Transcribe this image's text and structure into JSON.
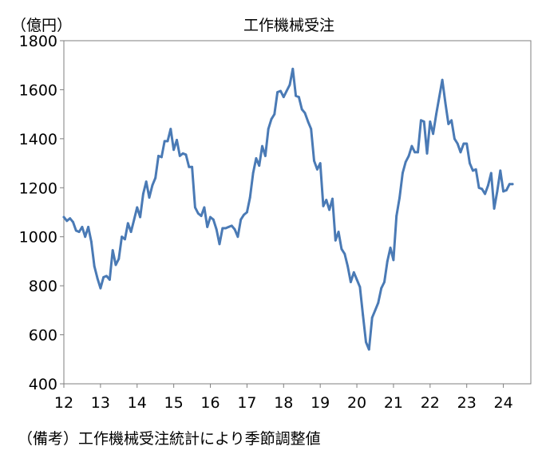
{
  "chart_data": {
    "type": "line",
    "title": "工作機械受注",
    "ylabel": "（億円）",
    "xlabel": "",
    "ylim": [
      400,
      1800
    ],
    "yticks": [
      400,
      600,
      800,
      1000,
      1200,
      1400,
      1600,
      1800
    ],
    "xlim": [
      2012.0,
      2024.75
    ],
    "xticks": [
      {
        "value": 2012.0,
        "label": "12"
      },
      {
        "value": 2013.0,
        "label": "13"
      },
      {
        "value": 2014.0,
        "label": "14"
      },
      {
        "value": 2015.0,
        "label": "15"
      },
      {
        "value": 2016.0,
        "label": "16"
      },
      {
        "value": 2017.0,
        "label": "17"
      },
      {
        "value": 2018.0,
        "label": "18"
      },
      {
        "value": 2019.0,
        "label": "19"
      },
      {
        "value": 2020.0,
        "label": "20"
      },
      {
        "value": 2021.0,
        "label": "21"
      },
      {
        "value": 2022.0,
        "label": "22"
      },
      {
        "value": 2023.0,
        "label": "23"
      },
      {
        "value": 2024.0,
        "label": "24"
      }
    ],
    "grid": false,
    "line_color": "#4a7ab5",
    "series": [
      {
        "x": [
          2012.0,
          2012.083,
          2012.167,
          2012.25,
          2012.333,
          2012.417,
          2012.5,
          2012.583,
          2012.667,
          2012.75,
          2012.833,
          2012.917,
          2013.0,
          2013.083,
          2013.167,
          2013.25,
          2013.333,
          2013.417,
          2013.5,
          2013.583,
          2013.667,
          2013.75,
          2013.833,
          2013.917,
          2014.0,
          2014.083,
          2014.167,
          2014.25,
          2014.333,
          2014.417,
          2014.5,
          2014.583,
          2014.667,
          2014.75,
          2014.833,
          2014.917,
          2015.0,
          2015.083,
          2015.167,
          2015.25,
          2015.333,
          2015.417,
          2015.5,
          2015.583,
          2015.667,
          2015.75,
          2015.833,
          2015.917,
          2016.0,
          2016.083,
          2016.167,
          2016.25,
          2016.333,
          2016.417,
          2016.5,
          2016.583,
          2016.667,
          2016.75,
          2016.833,
          2016.917,
          2017.0,
          2017.083,
          2017.167,
          2017.25,
          2017.333,
          2017.417,
          2017.5,
          2017.583,
          2017.667,
          2017.75,
          2017.833,
          2017.917,
          2018.0,
          2018.083,
          2018.167,
          2018.25,
          2018.333,
          2018.417,
          2018.5,
          2018.583,
          2018.667,
          2018.75,
          2018.833,
          2018.917,
          2019.0,
          2019.083,
          2019.167,
          2019.25,
          2019.333,
          2019.417,
          2019.5,
          2019.583,
          2019.667,
          2019.75,
          2019.833,
          2019.917,
          2020.0,
          2020.083,
          2020.167,
          2020.25,
          2020.333,
          2020.417,
          2020.5,
          2020.583,
          2020.667,
          2020.75,
          2020.833,
          2020.917,
          2021.0,
          2021.083,
          2021.167,
          2021.25,
          2021.333,
          2021.417,
          2021.5,
          2021.583,
          2021.667,
          2021.75,
          2021.833,
          2021.917,
          2022.0,
          2022.083,
          2022.167,
          2022.25,
          2022.333,
          2022.417,
          2022.5,
          2022.583,
          2022.667,
          2022.75,
          2022.833,
          2022.917,
          2023.0,
          2023.083,
          2023.167,
          2023.25,
          2023.333,
          2023.417,
          2023.5,
          2023.583,
          2023.667,
          2023.75,
          2023.833,
          2023.917,
          2024.0,
          2024.083,
          2024.167,
          2024.25
        ],
        "y": [
          1080,
          1065,
          1075,
          1060,
          1025,
          1020,
          1040,
          1000,
          1040,
          980,
          880,
          830,
          790,
          835,
          840,
          825,
          945,
          885,
          910,
          1000,
          990,
          1055,
          1020,
          1070,
          1120,
          1080,
          1175,
          1225,
          1160,
          1210,
          1240,
          1330,
          1325,
          1390,
          1390,
          1440,
          1355,
          1395,
          1330,
          1340,
          1335,
          1285,
          1285,
          1120,
          1095,
          1085,
          1120,
          1040,
          1080,
          1070,
          1030,
          970,
          1035,
          1035,
          1040,
          1045,
          1030,
          1000,
          1070,
          1090,
          1100,
          1160,
          1260,
          1320,
          1290,
          1370,
          1330,
          1440,
          1480,
          1500,
          1590,
          1595,
          1570,
          1595,
          1620,
          1685,
          1575,
          1570,
          1520,
          1505,
          1470,
          1440,
          1310,
          1275,
          1300,
          1125,
          1150,
          1110,
          1155,
          985,
          1020,
          950,
          930,
          880,
          815,
          855,
          825,
          795,
          680,
          570,
          540,
          670,
          700,
          730,
          790,
          815,
          900,
          955,
          905,
          1085,
          1160,
          1260,
          1305,
          1330,
          1370,
          1345,
          1345,
          1475,
          1470,
          1340,
          1470,
          1420,
          1500,
          1570,
          1640,
          1545,
          1460,
          1475,
          1400,
          1380,
          1345,
          1380,
          1380,
          1300,
          1270,
          1275,
          1200,
          1195,
          1175,
          1210,
          1260,
          1115,
          1185,
          1270,
          1185,
          1190,
          1215,
          1215
        ]
      }
    ]
  },
  "footnote": "（備考）工作機械受注統計により季節調整値"
}
